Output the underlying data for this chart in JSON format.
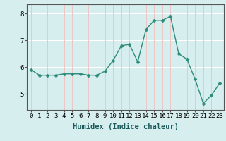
{
  "x": [
    0,
    1,
    2,
    3,
    4,
    5,
    6,
    7,
    8,
    9,
    10,
    11,
    12,
    13,
    14,
    15,
    16,
    17,
    18,
    19,
    20,
    21,
    22,
    23
  ],
  "y": [
    5.9,
    5.7,
    5.7,
    5.7,
    5.75,
    5.75,
    5.75,
    5.7,
    5.7,
    5.85,
    6.25,
    6.8,
    6.85,
    6.2,
    7.4,
    7.75,
    7.75,
    7.9,
    6.5,
    6.3,
    5.55,
    4.65,
    4.95,
    5.4
  ],
  "line_color": "#2e8b7a",
  "marker": "D",
  "marker_size": 2.5,
  "background_color": "#d6eeee",
  "grid_color_h": "#ffffff",
  "grid_color_v": "#f0c0c0",
  "xlabel": "Humidex (Indice chaleur)",
  "ylim": [
    4.4,
    8.35
  ],
  "xlim": [
    -0.5,
    23.5
  ],
  "yticks": [
    5,
    6,
    7,
    8
  ],
  "xticks": [
    0,
    1,
    2,
    3,
    4,
    5,
    6,
    7,
    8,
    9,
    10,
    11,
    12,
    13,
    14,
    15,
    16,
    17,
    18,
    19,
    20,
    21,
    22,
    23
  ],
  "label_fontsize": 7.5,
  "tick_fontsize": 6.5
}
